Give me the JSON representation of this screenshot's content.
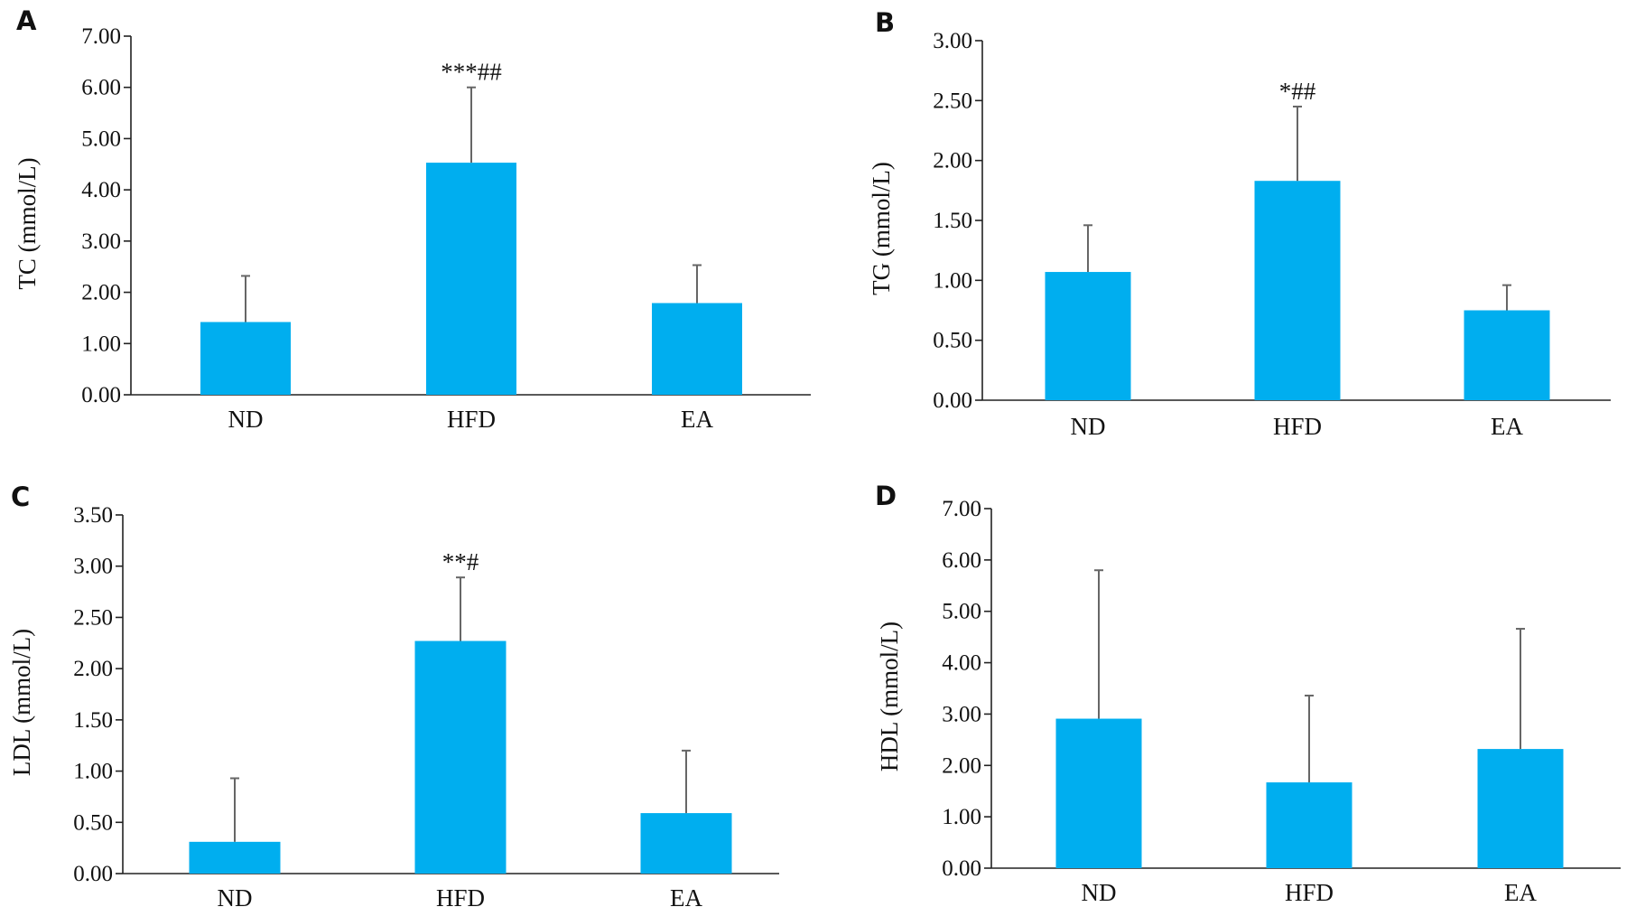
{
  "chart_data": [
    {
      "type": "bar",
      "panel_label": "A",
      "categories": [
        "ND",
        "HFD",
        "EA"
      ],
      "values": [
        1.42,
        4.53,
        1.79
      ],
      "errors": [
        0.9,
        1.47,
        0.74
      ],
      "annotations": [
        "",
        "***##",
        ""
      ],
      "ylabel": "TC (mmol/L)",
      "yticks": [
        "0.00",
        "1.00",
        "2.00",
        "3.00",
        "4.00",
        "5.00",
        "6.00",
        "7.00"
      ],
      "ylim": [
        0,
        7
      ],
      "bar_color": "#00AEEF",
      "grid": false
    },
    {
      "type": "bar",
      "panel_label": "B",
      "categories": [
        "ND",
        "HFD",
        "EA"
      ],
      "values": [
        1.07,
        1.83,
        0.75
      ],
      "errors": [
        0.39,
        0.62,
        0.21
      ],
      "annotations": [
        "",
        "*##",
        ""
      ],
      "ylabel": "TG (mmol/L)",
      "yticks": [
        "0.00",
        "0.50",
        "1.00",
        "1.50",
        "2.00",
        "2.50",
        "3.00"
      ],
      "ylim": [
        0,
        3
      ],
      "bar_color": "#00AEEF",
      "grid": false
    },
    {
      "type": "bar",
      "panel_label": "C",
      "categories": [
        "ND",
        "HFD",
        "EA"
      ],
      "values": [
        0.31,
        2.27,
        0.59
      ],
      "errors": [
        0.62,
        0.62,
        0.61
      ],
      "annotations": [
        "",
        "**#",
        ""
      ],
      "ylabel": "LDL (mmol/L)",
      "yticks": [
        "0.00",
        "0.50",
        "1.00",
        "1.50",
        "2.00",
        "2.50",
        "3.00",
        "3.50"
      ],
      "ylim": [
        0,
        3.5
      ],
      "bar_color": "#00AEEF",
      "grid": false
    },
    {
      "type": "bar",
      "panel_label": "D",
      "categories": [
        "ND",
        "HFD",
        "EA"
      ],
      "values": [
        2.91,
        1.67,
        2.32
      ],
      "errors": [
        2.89,
        1.69,
        2.34
      ],
      "annotations": [
        "",
        "",
        ""
      ],
      "ylabel": "HDL (mmol/L)",
      "yticks": [
        "0.00",
        "1.00",
        "2.00",
        "3.00",
        "4.00",
        "5.00",
        "6.00",
        "7.00"
      ],
      "ylim": [
        0,
        7
      ],
      "bar_color": "#00AEEF",
      "grid": false
    }
  ]
}
